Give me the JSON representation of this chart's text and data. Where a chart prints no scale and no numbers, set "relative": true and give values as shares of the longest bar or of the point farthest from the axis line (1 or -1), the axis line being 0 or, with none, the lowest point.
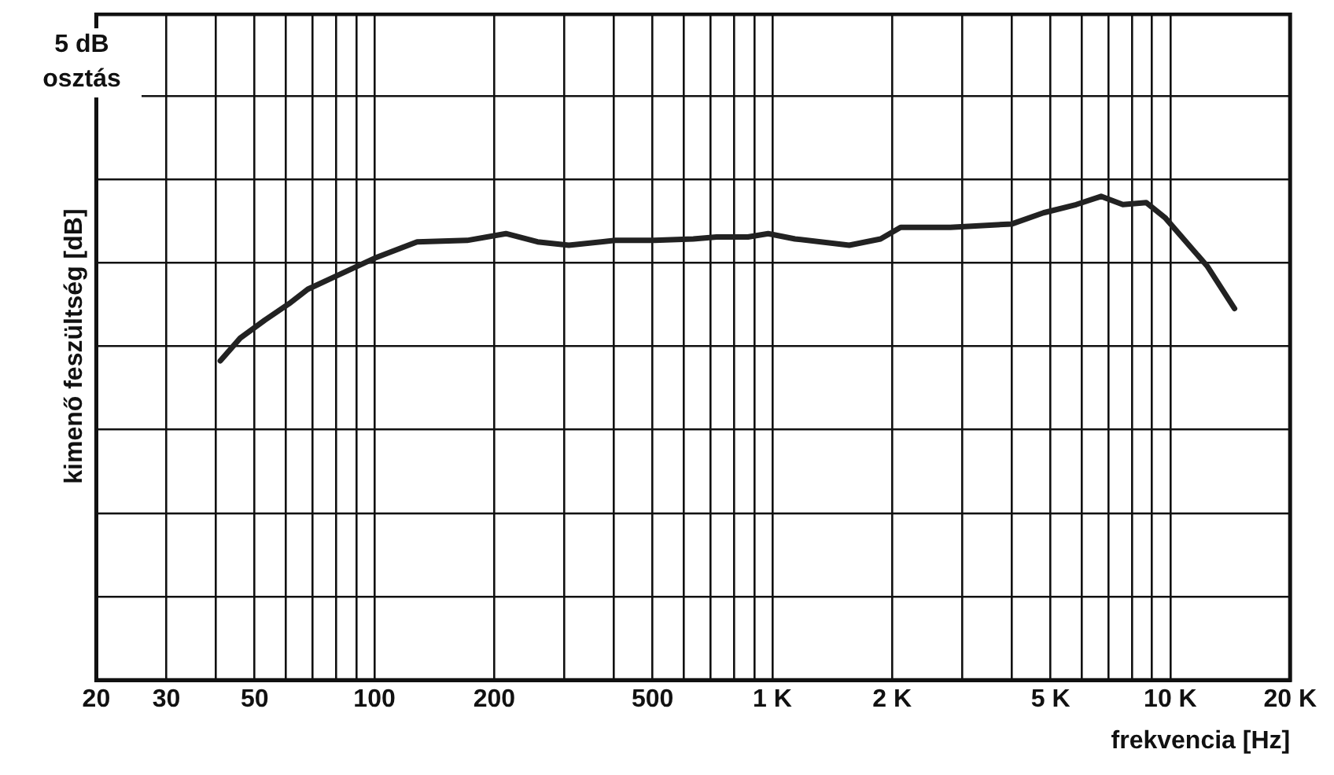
{
  "chart_data": {
    "type": "line",
    "ylabel": "kimenő feszültség [dB]",
    "xlabel": "frekvencia [Hz]",
    "annotations": [
      "5 dB osztás"
    ],
    "relative": true,
    "log": "x",
    "grid": true,
    "legend": false,
    "marker": "none",
    "line_style": "solid",
    "xlim": [
      20,
      20000
    ],
    "xticks": [
      20,
      30,
      {
        "value": 40,
        "label": null
      },
      50,
      {
        "value": 60,
        "label": null
      },
      {
        "value": 70,
        "label": null
      },
      {
        "value": 80,
        "label": null
      },
      {
        "value": 90,
        "label": null
      },
      100,
      200,
      {
        "value": 300,
        "label": null
      },
      {
        "value": 400,
        "label": null
      },
      500,
      {
        "value": 600,
        "label": null
      },
      {
        "value": 700,
        "label": null
      },
      {
        "value": 800,
        "label": null
      },
      {
        "value": 900,
        "label": null
      },
      {
        "value": 1000,
        "label": "1 K"
      },
      {
        "value": 2000,
        "label": "2 K"
      },
      {
        "value": 3000,
        "label": null
      },
      {
        "value": 4000,
        "label": null
      },
      {
        "value": 5000,
        "label": "5 K"
      },
      {
        "value": 6000,
        "label": null
      },
      {
        "value": 7000,
        "label": null
      },
      {
        "value": 8000,
        "label": null
      },
      {
        "value": 9000,
        "label": null
      },
      {
        "value": 10000,
        "label": "10 K"
      },
      {
        "value": 20000,
        "label": "20 K"
      }
    ],
    "series": [
      {
        "color": "#222222",
        "x": [
          41,
          46,
          53,
          61,
          68,
          80,
          100,
          128,
          171,
          214,
          257,
          308,
          403,
          505,
          633,
          724,
          868,
          976,
          1140,
          1560,
          1870,
          2100,
          2800,
          4000,
          4800,
          5800,
          6700,
          7600,
          8700,
          9700,
          12400,
          14500
        ],
        "values": [
          0.66,
          0.707,
          0.744,
          0.778,
          0.808,
          0.835,
          0.872,
          0.906,
          0.909,
          0.923,
          0.906,
          0.899,
          0.909,
          0.909,
          0.912,
          0.916,
          0.916,
          0.923,
          0.912,
          0.899,
          0.912,
          0.936,
          0.936,
          0.943,
          0.966,
          0.983,
          1,
          0.983,
          0.987,
          0.956,
          0.855,
          0.768
        ]
      }
    ]
  }
}
